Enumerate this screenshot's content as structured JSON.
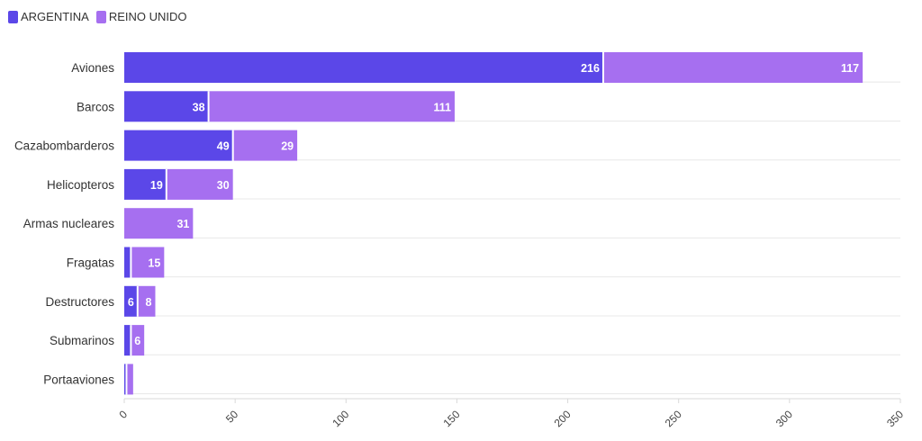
{
  "legend": [
    {
      "label": "ARGENTINA",
      "color": "#5b47e8"
    },
    {
      "label": "REINO UNIDO",
      "color": "#a66ff0"
    }
  ],
  "chart_data": {
    "type": "bar",
    "orientation": "horizontal",
    "stacked": true,
    "categories": [
      "Aviones",
      "Barcos",
      "Cazabombarderos",
      "Helicopteros",
      "Armas nucleares",
      "Fragatas",
      "Destructores",
      "Submarinos",
      "Portaaviones"
    ],
    "series": [
      {
        "name": "ARGENTINA",
        "color": "#5b47e8",
        "values": [
          216,
          38,
          49,
          19,
          0,
          3,
          6,
          3,
          1
        ],
        "labels": [
          "216",
          "38",
          "49",
          "19",
          "",
          "",
          "6",
          "",
          ""
        ]
      },
      {
        "name": "REINO UNIDO",
        "color": "#a66ff0",
        "values": [
          117,
          111,
          29,
          30,
          31,
          15,
          8,
          6,
          3
        ],
        "labels": [
          "117",
          "111",
          "29",
          "30",
          "31",
          "15",
          "8",
          "6",
          ""
        ]
      }
    ],
    "xlim": [
      0,
      350
    ],
    "xticks": [
      0,
      50,
      100,
      150,
      200,
      250,
      300,
      350
    ],
    "grid": true,
    "legend_position": "top-left"
  }
}
